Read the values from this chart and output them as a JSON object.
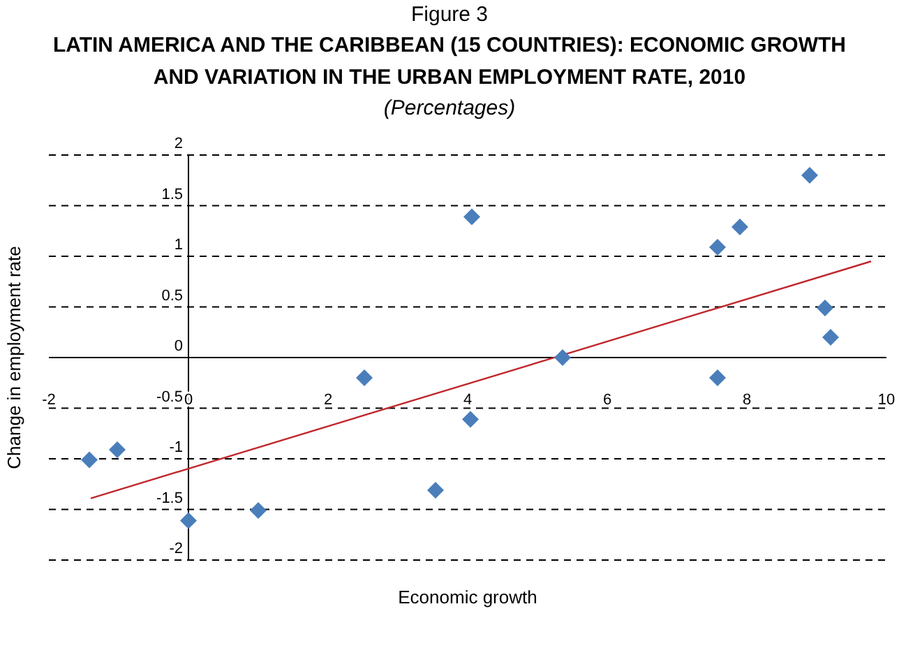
{
  "chart_data": {
    "type": "scatter",
    "title": "Figure 3",
    "subtitle": "LATIN AMERICA AND THE CARIBBEAN (15 COUNTRIES): ECONOMIC GROWTH AND VARIATION IN THE URBAN EMPLOYMENT RATE, 2010",
    "annotations": [
      "(Percentages)"
    ],
    "xlabel": "Economic growth",
    "ylabel": "Change in employment rate",
    "xlim": [
      -2,
      10
    ],
    "xticks": [
      -2,
      0,
      2,
      4,
      6,
      8,
      10
    ],
    "ylim": [
      -2,
      2
    ],
    "yticks": [
      -2,
      -1.5,
      -1,
      -0.5,
      0,
      0.5,
      1,
      1.5,
      2
    ],
    "grid": "y",
    "legend": false,
    "marker": "diamond",
    "series": [
      {
        "color": "#4a7ebb",
        "x": [
          8.9,
          4.06,
          7.9,
          7.58,
          9.12,
          9.2,
          5.36,
          2.52,
          7.58,
          4.04,
          -1.02,
          -1.42,
          3.54,
          1.0,
          0.0
        ],
        "values": [
          1.8,
          1.39,
          1.29,
          1.09,
          0.49,
          0.2,
          0.0,
          -0.2,
          -0.2,
          -0.61,
          -0.91,
          -1.01,
          -1.31,
          -1.51,
          -1.61
        ]
      },
      {
        "type": "line",
        "marker": "none",
        "color": "#c0272d",
        "x": [
          -1.4,
          9.78
        ],
        "values": [
          -1.39,
          0.95
        ]
      }
    ]
  }
}
